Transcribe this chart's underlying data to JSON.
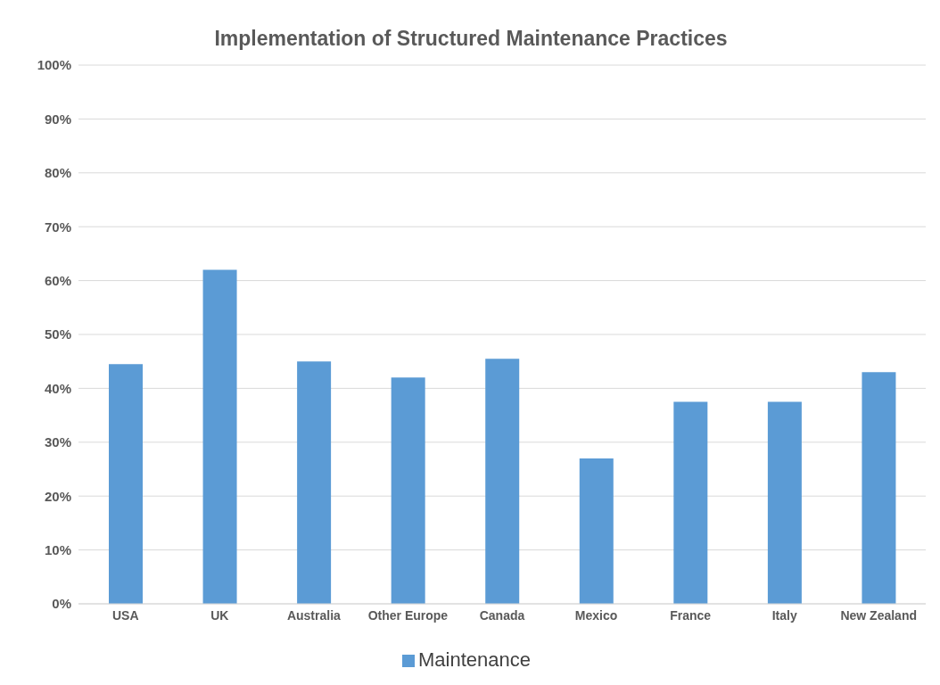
{
  "chart_data": {
    "type": "bar",
    "title": "Implementation of Structured Maintenance Practices",
    "categories": [
      "USA",
      "UK",
      "Australia",
      "Other Europe",
      "Canada",
      "Mexico",
      "France",
      "Italy",
      "New Zealand"
    ],
    "series": [
      {
        "name": "Maintenance",
        "color": "#5b9bd5",
        "values": [
          44.5,
          62,
          45,
          42,
          45.5,
          27,
          37.5,
          37.5,
          43
        ]
      }
    ],
    "ylim": [
      0,
      100
    ],
    "yticks": [
      {
        "value": 0,
        "label": "0%"
      },
      {
        "value": 10,
        "label": "10%"
      },
      {
        "value": 20,
        "label": "20%"
      },
      {
        "value": 30,
        "label": "30%"
      },
      {
        "value": 40,
        "label": "40%"
      },
      {
        "value": 50,
        "label": "50%"
      },
      {
        "value": 60,
        "label": "60%"
      },
      {
        "value": 70,
        "label": "70%"
      },
      {
        "value": 80,
        "label": "80%"
      },
      {
        "value": 90,
        "label": "90%"
      },
      {
        "value": 100,
        "label": "100%"
      }
    ],
    "grid": "y",
    "legend": "bottom"
  }
}
